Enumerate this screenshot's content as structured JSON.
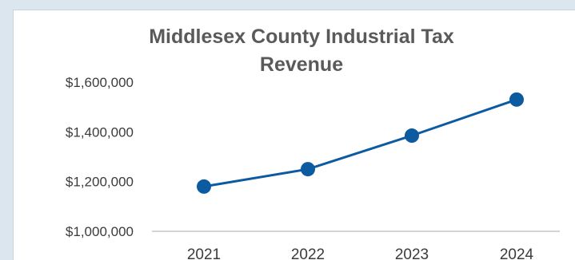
{
  "chart_data": {
    "type": "line",
    "title_lines": [
      "Middlesex County Industrial Tax",
      "Revenue"
    ],
    "categories": [
      "2021",
      "2022",
      "2023",
      "2024"
    ],
    "series": [
      {
        "values": [
          1180000,
          1250000,
          1385000,
          1530000
        ]
      }
    ],
    "ylim": [
      1000000,
      1600000
    ],
    "y_ticks": [
      {
        "value": 1000000,
        "label": "$1,000,000"
      },
      {
        "value": 1200000,
        "label": "$1,200,000"
      },
      {
        "value": 1400000,
        "label": "$1,400,000"
      },
      {
        "value": 1600000,
        "label": "$1,600,000"
      }
    ],
    "grid": false,
    "legend": "none",
    "colors": {
      "line": "#0c5aa0",
      "marker": "#0c5aa0",
      "axis": "#d4d4d4",
      "text": "#3b3b3b",
      "title": "#5a5a5a"
    }
  }
}
